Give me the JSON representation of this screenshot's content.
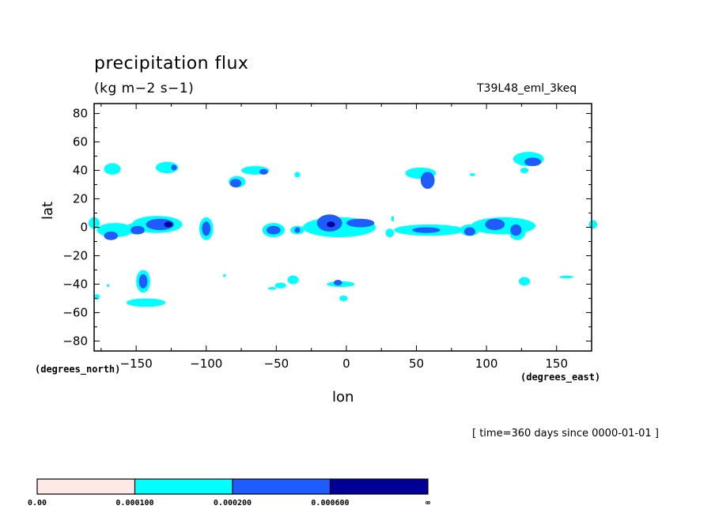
{
  "chart_data": {
    "type": "heatmap",
    "title": "precipitation flux",
    "subtitle": "(kg m−2 s−1)",
    "run_label": "T39L48_eml_3keq",
    "time_label": "[ time=360 days since 0000-01-01 ]",
    "xlabel": "lon",
    "ylabel": "lat",
    "x_units": "(degrees_east)",
    "y_units": "(degrees_north)",
    "xlim": [
      -180,
      175
    ],
    "ylim": [
      -87,
      87
    ],
    "xticks": [
      -150,
      -100,
      -50,
      0,
      50,
      100,
      150
    ],
    "yticks": [
      80,
      60,
      40,
      20,
      0,
      -20,
      -40,
      -60,
      -80
    ],
    "x_tick_labels": [
      "−150",
      "−100",
      "−50",
      "0",
      "50",
      "100",
      "150"
    ],
    "y_tick_labels": [
      "80",
      "60",
      "40",
      "20",
      "0",
      "−20",
      "−40",
      "−60",
      "−80"
    ],
    "levels": [
      0.0,
      0.0001,
      0.0002,
      0.0006
    ],
    "level_labels": [
      "0.00",
      "0.000100",
      "0.000200",
      "0.000600",
      "∞"
    ],
    "colors": [
      "#fde9e6",
      "#00ffff",
      "#1f5cff",
      "#000099"
    ],
    "features": [
      {
        "lon": -167,
        "lat": 41,
        "rx": 6,
        "ry": 4,
        "level": 1
      },
      {
        "lon": -128,
        "lat": 42,
        "rx": 8,
        "ry": 4,
        "level": 1
      },
      {
        "lon": -123,
        "lat": 42,
        "rx": 2,
        "ry": 2,
        "level": 2
      },
      {
        "lon": -65,
        "lat": 40,
        "rx": 10,
        "ry": 3,
        "level": 1
      },
      {
        "lon": -59,
        "lat": 39,
        "rx": 3,
        "ry": 2,
        "level": 2
      },
      {
        "lon": -78,
        "lat": 32,
        "rx": 6,
        "ry": 4,
        "level": 1
      },
      {
        "lon": -79,
        "lat": 31,
        "rx": 4,
        "ry": 3,
        "level": 2
      },
      {
        "lon": -35,
        "lat": 37,
        "rx": 2,
        "ry": 2,
        "level": 1
      },
      {
        "lon": 53,
        "lat": 38,
        "rx": 11,
        "ry": 4,
        "level": 1
      },
      {
        "lon": 58,
        "lat": 33,
        "rx": 5,
        "ry": 6,
        "level": 2
      },
      {
        "lon": 90,
        "lat": 37,
        "rx": 2,
        "ry": 1,
        "level": 1
      },
      {
        "lon": 130,
        "lat": 48,
        "rx": 11,
        "ry": 5,
        "level": 1
      },
      {
        "lon": 133,
        "lat": 46,
        "rx": 6,
        "ry": 3,
        "level": 2
      },
      {
        "lon": 127,
        "lat": 40,
        "rx": 3,
        "ry": 2,
        "level": 1
      },
      {
        "lon": -180,
        "lat": 3,
        "rx": 4,
        "ry": 4,
        "level": 1
      },
      {
        "lon": 176,
        "lat": 2,
        "rx": 3,
        "ry": 3,
        "level": 1
      },
      {
        "lon": -165,
        "lat": -2,
        "rx": 13,
        "ry": 5,
        "level": 1
      },
      {
        "lon": -168,
        "lat": -6,
        "rx": 5,
        "ry": 3,
        "level": 2
      },
      {
        "lon": -150,
        "lat": -1,
        "rx": 8,
        "ry": 4,
        "level": 1
      },
      {
        "lon": -149,
        "lat": -2,
        "rx": 5,
        "ry": 3,
        "level": 2
      },
      {
        "lon": -135,
        "lat": 2,
        "rx": 18,
        "ry": 6,
        "level": 1
      },
      {
        "lon": -133,
        "lat": 2,
        "rx": 10,
        "ry": 4,
        "level": 2
      },
      {
        "lon": -127,
        "lat": 2,
        "rx": 3,
        "ry": 2,
        "level": 3
      },
      {
        "lon": -100,
        "lat": -1,
        "rx": 5,
        "ry": 8,
        "level": 1
      },
      {
        "lon": -100,
        "lat": -1,
        "rx": 3,
        "ry": 5,
        "level": 2
      },
      {
        "lon": -52,
        "lat": -2,
        "rx": 8,
        "ry": 5,
        "level": 1
      },
      {
        "lon": -52,
        "lat": -2,
        "rx": 5,
        "ry": 3,
        "level": 2
      },
      {
        "lon": -35,
        "lat": -2,
        "rx": 5,
        "ry": 3,
        "level": 1
      },
      {
        "lon": -35,
        "lat": -2,
        "rx": 2,
        "ry": 2,
        "level": 2
      },
      {
        "lon": -5,
        "lat": 0,
        "rx": 26,
        "ry": 7,
        "level": 1
      },
      {
        "lon": -12,
        "lat": 3,
        "rx": 9,
        "ry": 6,
        "level": 2
      },
      {
        "lon": -11,
        "lat": 2,
        "rx": 3,
        "ry": 2,
        "level": 3
      },
      {
        "lon": 10,
        "lat": 3,
        "rx": 10,
        "ry": 3,
        "level": 2
      },
      {
        "lon": 31,
        "lat": -4,
        "rx": 3,
        "ry": 3,
        "level": 1
      },
      {
        "lon": 33,
        "lat": 6,
        "rx": 1,
        "ry": 2,
        "level": 1
      },
      {
        "lon": 59,
        "lat": -2,
        "rx": 25,
        "ry": 4,
        "level": 1
      },
      {
        "lon": 57,
        "lat": -2,
        "rx": 10,
        "ry": 2,
        "level": 2
      },
      {
        "lon": 88,
        "lat": -2,
        "rx": 7,
        "ry": 4,
        "level": 1
      },
      {
        "lon": 88,
        "lat": -3,
        "rx": 4,
        "ry": 3,
        "level": 2
      },
      {
        "lon": 112,
        "lat": 1,
        "rx": 23,
        "ry": 6,
        "level": 1
      },
      {
        "lon": 106,
        "lat": 2,
        "rx": 7,
        "ry": 4,
        "level": 2
      },
      {
        "lon": 122,
        "lat": -3,
        "rx": 6,
        "ry": 6,
        "level": 1
      },
      {
        "lon": 121,
        "lat": -2,
        "rx": 4,
        "ry": 4,
        "level": 2
      },
      {
        "lon": 133,
        "lat": 1,
        "rx": 2,
        "ry": 1,
        "level": 1
      },
      {
        "lon": -145,
        "lat": -38,
        "rx": 5,
        "ry": 8,
        "level": 1
      },
      {
        "lon": -145,
        "lat": -38,
        "rx": 3,
        "ry": 5,
        "level": 2
      },
      {
        "lon": -178,
        "lat": -49,
        "rx": 2,
        "ry": 2,
        "level": 1
      },
      {
        "lon": -170,
        "lat": -41,
        "rx": 1,
        "ry": 1,
        "level": 1
      },
      {
        "lon": -143,
        "lat": -53,
        "rx": 14,
        "ry": 3,
        "level": 1
      },
      {
        "lon": -38,
        "lat": -37,
        "rx": 4,
        "ry": 3,
        "level": 1
      },
      {
        "lon": -47,
        "lat": -41,
        "rx": 4,
        "ry": 2,
        "level": 1
      },
      {
        "lon": -53,
        "lat": -43,
        "rx": 3,
        "ry": 1,
        "level": 1
      },
      {
        "lon": -4,
        "lat": -40,
        "rx": 10,
        "ry": 2,
        "level": 1
      },
      {
        "lon": -6,
        "lat": -39,
        "rx": 3,
        "ry": 2,
        "level": 2
      },
      {
        "lon": -2,
        "lat": -50,
        "rx": 3,
        "ry": 2,
        "level": 1
      },
      {
        "lon": 127,
        "lat": -38,
        "rx": 4,
        "ry": 3,
        "level": 1
      },
      {
        "lon": 157,
        "lat": -35,
        "rx": 5,
        "ry": 1,
        "level": 1
      },
      {
        "lon": -87,
        "lat": -34,
        "rx": 1,
        "ry": 1,
        "level": 1
      }
    ]
  }
}
